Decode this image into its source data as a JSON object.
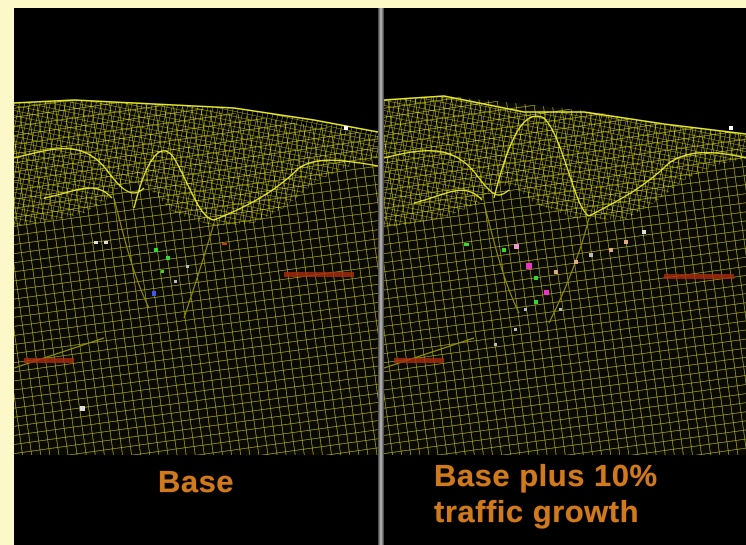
{
  "panels": [
    {
      "caption": "Base"
    },
    {
      "caption_line1": "Base plus 10%",
      "caption_line2": "traffic growth"
    }
  ],
  "colors": {
    "background": "#fdf8c8",
    "panel_bg": "#000000",
    "mesh": "#cfcf1a",
    "mesh_bright": "#f2f23a",
    "caption": "#d07a1e"
  }
}
